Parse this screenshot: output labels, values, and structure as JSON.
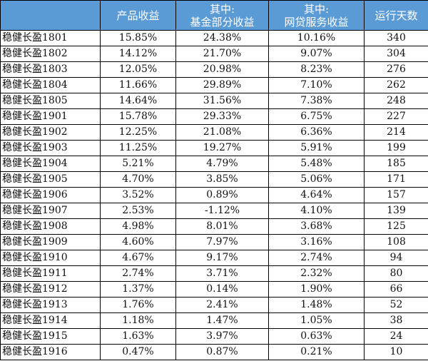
{
  "table": {
    "headers": [
      {
        "line1": "",
        "line2": ""
      },
      {
        "line1": "产品收益",
        "line2": ""
      },
      {
        "line1": "其中:",
        "line2": "基金部分收益"
      },
      {
        "line1": "其中:",
        "line2": "网贷服务收益"
      },
      {
        "line1": "运行天数",
        "line2": ""
      }
    ],
    "rows": [
      {
        "name": "稳健长盈1801",
        "product": "15.85%",
        "fund": "24.38%",
        "p2p": "10.16%",
        "days": "340"
      },
      {
        "name": "稳健长盈1802",
        "product": "14.12%",
        "fund": "21.70%",
        "p2p": "9.07%",
        "days": "304"
      },
      {
        "name": "稳健长盈1803",
        "product": "12.05%",
        "fund": "20.98%",
        "p2p": "8.23%",
        "days": "276"
      },
      {
        "name": "稳健长盈1804",
        "product": "11.66%",
        "fund": "29.89%",
        "p2p": "7.10%",
        "days": "262"
      },
      {
        "name": "稳健长盈1805",
        "product": "14.64%",
        "fund": "31.56%",
        "p2p": "7.38%",
        "days": "248"
      },
      {
        "name": "稳健长盈1901",
        "product": "15.78%",
        "fund": "29.33%",
        "p2p": "6.75%",
        "days": "227"
      },
      {
        "name": "稳健长盈1902",
        "product": "12.25%",
        "fund": "21.08%",
        "p2p": "6.36%",
        "days": "214"
      },
      {
        "name": "稳健长盈1903",
        "product": "11.25%",
        "fund": "19.27%",
        "p2p": "5.91%",
        "days": "199"
      },
      {
        "name": "稳健长盈1904",
        "product": "5.21%",
        "fund": "4.79%",
        "p2p": "5.48%",
        "days": "185"
      },
      {
        "name": "稳健长盈1905",
        "product": "4.70%",
        "fund": "3.85%",
        "p2p": "5.06%",
        "days": "171"
      },
      {
        "name": "稳健长盈1906",
        "product": "3.52%",
        "fund": "0.89%",
        "p2p": "4.64%",
        "days": "157"
      },
      {
        "name": "稳健长盈1907",
        "product": "2.53%",
        "fund": "-1.12%",
        "p2p": "4.10%",
        "days": "139"
      },
      {
        "name": "稳健长盈1908",
        "product": "4.98%",
        "fund": "8.01%",
        "p2p": "3.68%",
        "days": "125"
      },
      {
        "name": "稳健长盈1909",
        "product": "4.60%",
        "fund": "7.97%",
        "p2p": "3.16%",
        "days": "108"
      },
      {
        "name": "稳健长盈1910",
        "product": "4.67%",
        "fund": "9.17%",
        "p2p": "2.74%",
        "days": "94"
      },
      {
        "name": "稳健长盈1911",
        "product": "2.74%",
        "fund": "3.71%",
        "p2p": "2.32%",
        "days": "80"
      },
      {
        "name": "稳健长盈1912",
        "product": "1.37%",
        "fund": "0.14%",
        "p2p": "1.90%",
        "days": "66"
      },
      {
        "name": "稳健长盈1913",
        "product": "1.76%",
        "fund": "2.41%",
        "p2p": "1.48%",
        "days": "52"
      },
      {
        "name": "稳健长盈1914",
        "product": "1.18%",
        "fund": "1.47%",
        "p2p": "1.05%",
        "days": "38"
      },
      {
        "name": "稳健长盈1915",
        "product": "1.63%",
        "fund": "3.97%",
        "p2p": "0.63%",
        "days": "24"
      },
      {
        "name": "稳健长盈1916",
        "product": "0.47%",
        "fund": "0.87%",
        "p2p": "0.21%",
        "days": "10"
      }
    ]
  },
  "colors": {
    "header_bg": "#5b9bd5",
    "header_text": "#ffffff",
    "border": "#000000"
  }
}
